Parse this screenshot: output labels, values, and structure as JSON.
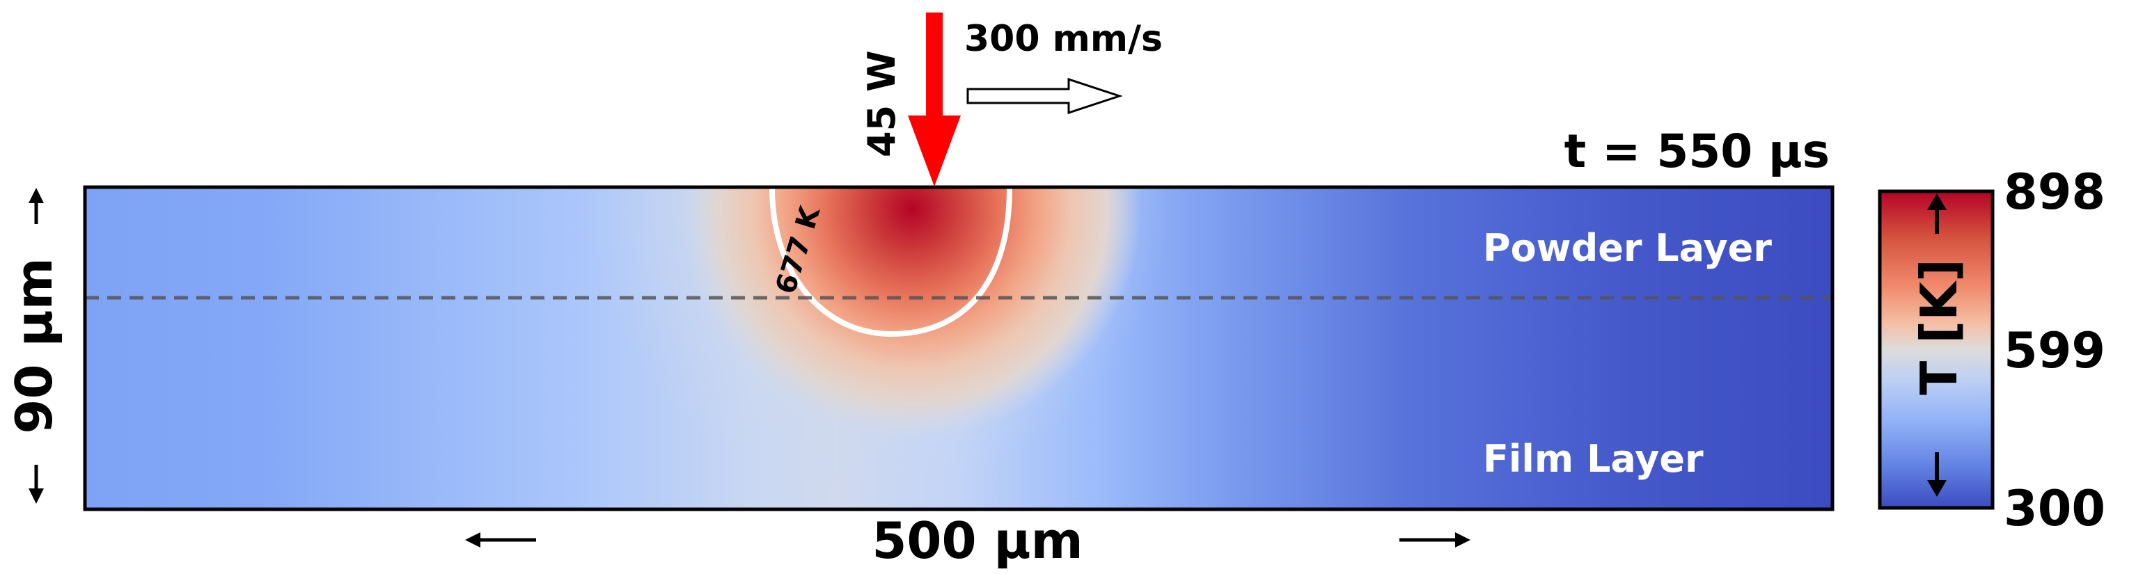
{
  "laser": {
    "power": "45 W",
    "speed": "300 mm/s"
  },
  "time_label": "t = 550 µs",
  "layers": {
    "powder": "Powder Layer",
    "film": "Film Layer"
  },
  "isotherm_label": "677 K",
  "dimensions": {
    "width": "500 µm",
    "height": "90 µm"
  },
  "colorbar": {
    "label": "T [K]",
    "ticks": [
      "898",
      "599",
      "300"
    ],
    "colors": {
      "hot": "#b40426",
      "mid": "#dddcdc",
      "cold": "#3b4cc0"
    }
  },
  "colors": {
    "laser_arrow": "#ff0000",
    "isotherm": "#ffffff",
    "interface_line": "#555555"
  }
}
